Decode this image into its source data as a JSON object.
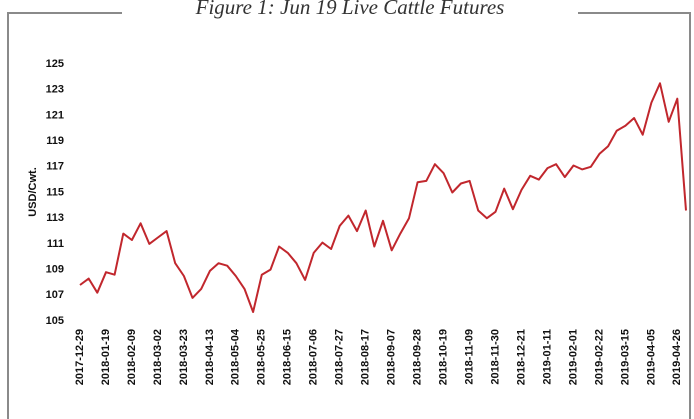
{
  "chart_data": {
    "type": "line",
    "title": "Figure 1: Jun 19 Live Cattle Futures",
    "y_label": "USD/Cwt.",
    "x": [
      "2017-12-29",
      "2018-01-05",
      "2018-01-12",
      "2018-01-19",
      "2018-01-26",
      "2018-02-02",
      "2018-02-09",
      "2018-02-16",
      "2018-02-23",
      "2018-03-02",
      "2018-03-09",
      "2018-03-16",
      "2018-03-23",
      "2018-03-30",
      "2018-04-06",
      "2018-04-13",
      "2018-04-20",
      "2018-04-27",
      "2018-05-04",
      "2018-05-11",
      "2018-05-18",
      "2018-05-25",
      "2018-06-01",
      "2018-06-08",
      "2018-06-15",
      "2018-06-22",
      "2018-06-29",
      "2018-07-06",
      "2018-07-13",
      "2018-07-20",
      "2018-07-27",
      "2018-08-03",
      "2018-08-10",
      "2018-08-17",
      "2018-08-24",
      "2018-08-31",
      "2018-09-07",
      "2018-09-14",
      "2018-09-21",
      "2018-09-28",
      "2018-10-05",
      "2018-10-12",
      "2018-10-19",
      "2018-10-26",
      "2018-11-02",
      "2018-11-09",
      "2018-11-16",
      "2018-11-23",
      "2018-11-30",
      "2018-12-07",
      "2018-12-14",
      "2018-12-21",
      "2018-12-28",
      "2019-01-04",
      "2019-01-11",
      "2019-01-18",
      "2019-01-25",
      "2019-02-01",
      "2019-02-08",
      "2019-02-15",
      "2019-02-22",
      "2019-03-01",
      "2019-03-08",
      "2019-03-15",
      "2019-03-22",
      "2019-03-29",
      "2019-04-05",
      "2019-04-12",
      "2019-04-19",
      "2019-04-26",
      "2019-05-03"
    ],
    "series": [
      {
        "name": "Jun 19 Live Cattle",
        "color": "#c1272d",
        "values": [
          107.8,
          108.3,
          107.2,
          108.8,
          108.6,
          111.8,
          111.3,
          112.6,
          111.0,
          111.5,
          112.0,
          109.5,
          108.5,
          106.8,
          107.5,
          108.9,
          109.5,
          109.3,
          108.5,
          107.5,
          105.7,
          108.6,
          109.0,
          110.8,
          110.3,
          109.5,
          108.2,
          110.3,
          111.1,
          110.6,
          112.4,
          113.2,
          112.0,
          113.6,
          110.8,
          112.8,
          110.5,
          111.8,
          113.0,
          115.8,
          115.9,
          117.2,
          116.5,
          115.0,
          115.7,
          115.9,
          113.6,
          113.0,
          113.5,
          115.3,
          113.7,
          115.2,
          116.3,
          116.0,
          116.9,
          117.2,
          116.2,
          117.1,
          116.8,
          117.0,
          118.0,
          118.6,
          119.8,
          120.2,
          120.8,
          119.5,
          122.0,
          123.5,
          120.5,
          122.3,
          113.6
        ]
      }
    ],
    "xlim": [
      "2017-12-29",
      "2019-05-03"
    ],
    "xticks": [
      "2017-12-29",
      "2018-01-19",
      "2018-02-09",
      "2018-03-02",
      "2018-03-23",
      "2018-04-13",
      "2018-05-04",
      "2018-05-25",
      "2018-06-15",
      "2018-07-06",
      "2018-07-27",
      "2018-08-17",
      "2018-09-07",
      "2018-09-28",
      "2018-10-19",
      "2018-11-09",
      "2018-11-30",
      "2018-12-21",
      "2019-01-11",
      "2019-02-01",
      "2019-02-22",
      "2019-03-15",
      "2019-04-05",
      "2019-04-26"
    ],
    "ylim": [
      105,
      125
    ],
    "yticks": [
      105,
      107,
      109,
      111,
      113,
      115,
      117,
      119,
      121,
      123,
      125
    ],
    "grid": false
  }
}
